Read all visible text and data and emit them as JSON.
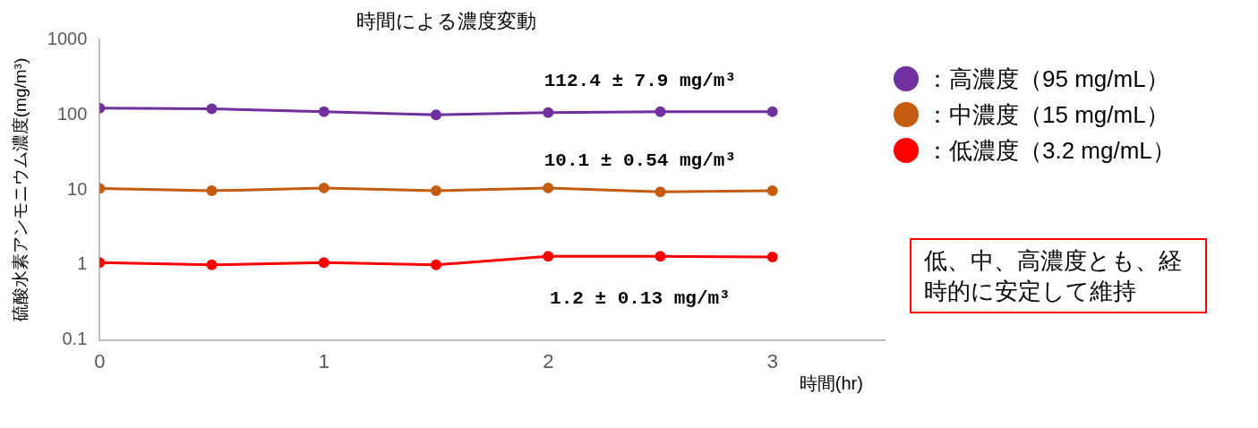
{
  "chart_data": {
    "type": "line",
    "title": "時間による濃度変動",
    "xlabel": "時間(hr)",
    "ylabel": "硫酸水素アンモニウム濃度(mg/m³)",
    "x": [
      0,
      0.5,
      1,
      1.5,
      2,
      2.5,
      3
    ],
    "series": [
      {
        "name": "：高濃度（95 mg/mL）",
        "color": "#7030a0",
        "values": [
          123,
          120,
          110,
          100,
          107,
          110,
          110
        ]
      },
      {
        "name": "：中濃度（15 mg/mL）",
        "color": "#c55a11",
        "values": [
          10.4,
          9.7,
          10.6,
          9.7,
          10.6,
          9.4,
          9.7
        ]
      },
      {
        "name": "：低濃度（3.2 mg/mL）",
        "color": "#ff0000",
        "values": [
          1.07,
          1.0,
          1.07,
          1.0,
          1.3,
          1.3,
          1.27
        ]
      }
    ],
    "xlim": [
      0,
      3.5
    ],
    "xticks": [
      0,
      1,
      2,
      3
    ],
    "ylim": [
      0.1,
      1000
    ],
    "yticks": [
      0.1,
      1,
      10,
      100,
      1000
    ],
    "log": true,
    "grid": false,
    "legend": "right",
    "marker": "circle",
    "line_style": "solid",
    "annotations": [
      "112.4 ± 7.9 mg/m³",
      "10.1 ± 0.54 mg/m³",
      "1.2 ± 0.13 mg/m³",
      "低、中、高濃度とも、経時的に安定して維持"
    ]
  }
}
